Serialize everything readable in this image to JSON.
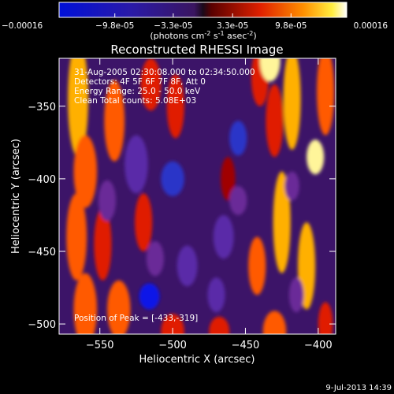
{
  "colorbar": {
    "tick_labels": [
      "-0.00016",
      "-9.8e-05",
      "-3.3e-05",
      "3.3e-05",
      "9.8e-05",
      "0.00016"
    ],
    "tick_values": [
      -0.00016,
      -9.8e-05,
      -3.3e-05,
      3.3e-05,
      9.8e-05,
      0.00016
    ],
    "range": [
      -0.00016,
      0.00016
    ],
    "units_label": "(photons cm",
    "units_exp1": "-2",
    "units_mid": " s",
    "units_exp2": "-1",
    "units_end": " asec",
    "units_exp3": "-2",
    "units_close": ")"
  },
  "chart_data": {
    "type": "heatmap",
    "title": "Reconstructed RHESSI Image",
    "xlabel": "Heliocentric X (arcsec)",
    "ylabel": "Heliocentric Y (arcsec)",
    "xlim": [
      -578,
      -388
    ],
    "ylim": [
      -507,
      -317
    ],
    "xticks": [
      -550,
      -500,
      -450,
      -400
    ],
    "yticks": [
      -500,
      -450,
      -400,
      -350
    ],
    "annotations": [
      "31-Aug-2005 02:30:08.000 to 02:34:50.000",
      "Detectors: 4F 5F 6F 7F 8F, Att 0",
      "Energy Range: 25.0 - 50.0 keV",
      "Clean     Total counts: 5.08E+03"
    ],
    "peak_label": "Position of Peak = [-433,-319]",
    "peak": [
      -433,
      -319
    ],
    "blobs": [
      {
        "x": -565,
        "y": -345,
        "v": 0.85,
        "w": 7,
        "h": 40
      },
      {
        "x": -560,
        "y": -395,
        "v": 0.75,
        "w": 8,
        "h": 25
      },
      {
        "x": -566,
        "y": -440,
        "v": 0.8,
        "w": 7,
        "h": 30
      },
      {
        "x": -560,
        "y": -490,
        "v": 0.7,
        "w": 8,
        "h": 25
      },
      {
        "x": -540,
        "y": -360,
        "v": 0.8,
        "w": 7,
        "h": 28
      },
      {
        "x": -548,
        "y": -445,
        "v": 0.6,
        "w": 6,
        "h": 25
      },
      {
        "x": -537,
        "y": -490,
        "v": 0.75,
        "w": 8,
        "h": 20
      },
      {
        "x": -515,
        "y": -335,
        "v": 0.55,
        "w": 7,
        "h": 18
      },
      {
        "x": -498,
        "y": -350,
        "v": 0.65,
        "w": 6,
        "h": 22
      },
      {
        "x": -520,
        "y": -430,
        "v": 0.55,
        "w": 6,
        "h": 20
      },
      {
        "x": -500,
        "y": -505,
        "v": 0.6,
        "w": 8,
        "h": 12
      },
      {
        "x": -440,
        "y": -330,
        "v": 0.6,
        "w": 6,
        "h": 20
      },
      {
        "x": -433,
        "y": -319,
        "v": 1.0,
        "w": 7,
        "h": 14
      },
      {
        "x": -430,
        "y": -360,
        "v": 0.55,
        "w": 6,
        "h": 25
      },
      {
        "x": -418,
        "y": -345,
        "v": 0.9,
        "w": 6,
        "h": 35
      },
      {
        "x": -402,
        "y": -385,
        "v": 0.95,
        "w": 6,
        "h": 12
      },
      {
        "x": -395,
        "y": -340,
        "v": 0.7,
        "w": 6,
        "h": 30
      },
      {
        "x": -462,
        "y": -400,
        "v": 0.5,
        "w": 5,
        "h": 15
      },
      {
        "x": -425,
        "y": -430,
        "v": 0.85,
        "w": 6,
        "h": 35
      },
      {
        "x": -442,
        "y": -460,
        "v": 0.7,
        "w": 6,
        "h": 20
      },
      {
        "x": -408,
        "y": -460,
        "v": 0.85,
        "w": 6,
        "h": 30
      },
      {
        "x": -430,
        "y": -505,
        "v": 0.75,
        "w": 8,
        "h": 14
      },
      {
        "x": -395,
        "y": -500,
        "v": 0.65,
        "w": 5,
        "h": 15
      },
      {
        "x": -468,
        "y": -505,
        "v": 0.55,
        "w": 7,
        "h": 10
      },
      {
        "x": -516,
        "y": -481,
        "v": -1.0,
        "w": 7,
        "h": 9
      },
      {
        "x": -500,
        "y": -400,
        "v": -0.8,
        "w": 8,
        "h": 12
      },
      {
        "x": -455,
        "y": -372,
        "v": -0.75,
        "w": 6,
        "h": 12
      },
      {
        "x": -525,
        "y": -390,
        "v": -0.55,
        "w": 8,
        "h": 20
      },
      {
        "x": -465,
        "y": -440,
        "v": -0.6,
        "w": 7,
        "h": 15
      },
      {
        "x": -490,
        "y": -460,
        "v": -0.6,
        "w": 7,
        "h": 14
      },
      {
        "x": -470,
        "y": -480,
        "v": -0.55,
        "w": 6,
        "h": 12
      },
      {
        "x": -545,
        "y": -415,
        "v": -0.4,
        "w": 6,
        "h": 14
      },
      {
        "x": -512,
        "y": -455,
        "v": -0.5,
        "w": 6,
        "h": 12
      },
      {
        "x": -415,
        "y": -480,
        "v": -0.5,
        "w": 5,
        "h": 12
      },
      {
        "x": -455,
        "y": -415,
        "v": -0.5,
        "w": 6,
        "h": 10
      },
      {
        "x": -418,
        "y": -405,
        "v": -0.45,
        "w": 5,
        "h": 10
      }
    ]
  },
  "footer": {
    "date": "9-Jul-2013 14:39"
  }
}
